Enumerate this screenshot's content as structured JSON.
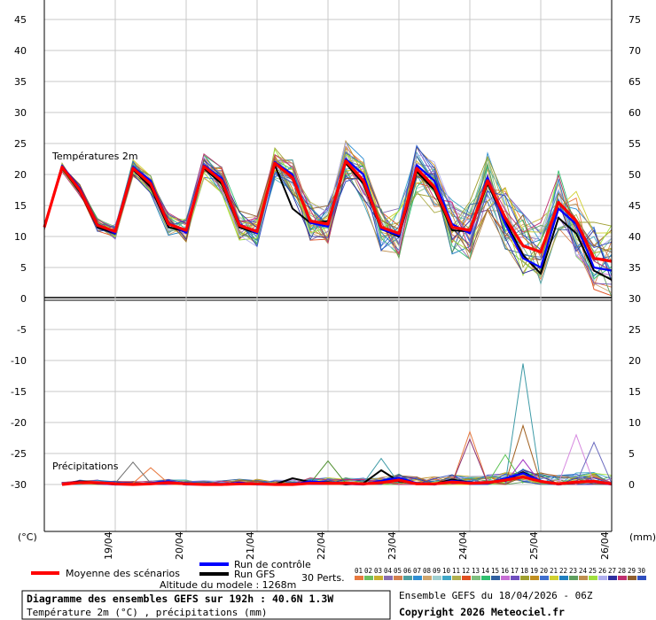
{
  "chart_data": {
    "type": "line",
    "temp_axis": {
      "unit": "(°C)",
      "ylim": [
        -35,
        45
      ],
      "ticks": [
        45,
        40,
        35,
        30,
        25,
        20,
        15,
        10,
        5,
        0,
        -5,
        -10,
        -15,
        -20,
        -25,
        -30
      ]
    },
    "precip_axis": {
      "unit": "(mm)",
      "ticks": [
        75,
        70,
        65,
        60,
        55,
        50,
        45,
        40,
        35,
        30,
        25,
        20,
        15,
        10,
        5,
        0
      ]
    },
    "x_range_hours": [
      0,
      192
    ],
    "x_ticks": [
      {
        "label": "19/04",
        "hour": 24
      },
      {
        "label": "20/04",
        "hour": 48
      },
      {
        "label": "21/04",
        "hour": 72
      },
      {
        "label": "22/04",
        "hour": 96
      },
      {
        "label": "23/04",
        "hour": 120
      },
      {
        "label": "24/04",
        "hour": 144
      },
      {
        "label": "25/04",
        "hour": 168
      },
      {
        "label": "26/04",
        "hour": 192
      }
    ],
    "temp_title": "Températures 2m",
    "precip_title": "Précipitations",
    "temp_mean": {
      "name": "Moyenne des scénarios",
      "x": [
        0,
        6,
        12,
        18,
        24,
        30,
        36,
        42,
        48,
        54,
        60,
        66,
        72,
        78,
        84,
        90,
        96,
        102,
        108,
        114,
        120,
        126,
        132,
        138,
        144,
        150,
        156,
        162,
        168,
        174,
        180,
        186,
        192
      ],
      "y": [
        11.5,
        21.2,
        17.5,
        11.8,
        10.8,
        21.0,
        18.5,
        12.0,
        11.0,
        21.3,
        19.0,
        11.8,
        10.8,
        21.8,
        19.5,
        12.5,
        12.0,
        22.2,
        19.0,
        11.5,
        10.5,
        21.0,
        18.0,
        11.5,
        11.0,
        19.0,
        13.0,
        8.5,
        7.5,
        15.5,
        12.5,
        6.5,
        6.0
      ]
    },
    "temp_control": {
      "name": "Run de contrôle",
      "x": [
        0,
        6,
        12,
        18,
        24,
        30,
        36,
        42,
        48,
        54,
        60,
        66,
        72,
        78,
        84,
        90,
        96,
        102,
        108,
        114,
        120,
        126,
        132,
        138,
        144,
        150,
        156,
        162,
        168,
        174,
        180,
        186,
        192
      ],
      "y": [
        11.5,
        21.4,
        17.8,
        12.0,
        10.5,
        21.2,
        19.0,
        12.2,
        10.6,
        21.5,
        19.4,
        12.0,
        10.5,
        22.0,
        20.0,
        12.2,
        11.6,
        22.5,
        20.0,
        11.2,
        10.2,
        21.5,
        19.0,
        12.0,
        10.5,
        19.5,
        12.0,
        6.5,
        5.0,
        14.5,
        12.0,
        5.0,
        4.5
      ]
    },
    "temp_gfs": {
      "name": "Run GFS",
      "x": [
        0,
        6,
        12,
        18,
        24,
        30,
        36,
        42,
        48,
        54,
        60,
        66,
        72,
        78,
        84,
        90,
        96,
        102,
        108,
        114,
        120,
        126,
        132,
        138,
        144,
        150,
        156,
        162,
        168,
        174,
        180,
        186,
        192
      ],
      "y": [
        11.5,
        21.0,
        17.2,
        11.5,
        10.5,
        20.8,
        18.0,
        11.5,
        10.8,
        21.0,
        18.5,
        11.5,
        10.5,
        21.5,
        14.5,
        12.2,
        12.5,
        21.8,
        18.5,
        11.2,
        10.0,
        20.5,
        17.5,
        11.0,
        10.8,
        18.5,
        12.5,
        7.0,
        4.0,
        13.0,
        10.5,
        4.5,
        3.0
      ]
    },
    "precip_mean": {
      "x": [
        6,
        12,
        18,
        24,
        30,
        36,
        42,
        48,
        54,
        60,
        66,
        72,
        78,
        84,
        90,
        96,
        102,
        108,
        114,
        120,
        126,
        132,
        138,
        144,
        150,
        156,
        162,
        168,
        174,
        180,
        186,
        192
      ],
      "y": [
        0,
        0.3,
        0.3,
        0.1,
        0,
        0.1,
        0.3,
        0.1,
        0,
        0,
        0.1,
        0.1,
        0,
        0,
        0.2,
        0.2,
        0.2,
        0.1,
        0.3,
        0.7,
        0.1,
        0.1,
        0.4,
        0.2,
        0.3,
        0.7,
        1.2,
        0.5,
        0.1,
        0.4,
        0.5,
        0.1
      ]
    },
    "precip_control": {
      "x": [
        6,
        12,
        18,
        24,
        30,
        36,
        42,
        48,
        54,
        60,
        66,
        72,
        78,
        84,
        90,
        96,
        102,
        108,
        114,
        120,
        126,
        132,
        138,
        144,
        150,
        156,
        162,
        168,
        174,
        180,
        186,
        192
      ],
      "y": [
        0,
        0.4,
        0.2,
        0,
        0,
        0.2,
        0.5,
        0,
        0,
        0,
        0.3,
        0,
        0,
        0,
        0.5,
        0.3,
        0.1,
        0,
        0.6,
        1.1,
        0.2,
        0,
        0.6,
        0.3,
        0.2,
        1.0,
        1.8,
        0.6,
        0,
        0.5,
        0.4,
        0
      ]
    },
    "precip_gfs": {
      "x": [
        6,
        12,
        18,
        24,
        30,
        36,
        42,
        48,
        54,
        60,
        66,
        72,
        78,
        84,
        90,
        96,
        102,
        108,
        114,
        120,
        126,
        132,
        138,
        144,
        150,
        156,
        162,
        168,
        174,
        180,
        186,
        192
      ],
      "y": [
        0,
        0.5,
        0.3,
        0,
        0,
        0.2,
        0.3,
        0,
        0,
        0,
        0.2,
        0,
        0,
        1.0,
        0.4,
        0.4,
        0,
        0.2,
        2.3,
        0.5,
        0.2,
        0.1,
        0.8,
        0.3,
        0.3,
        0.6,
        2.0,
        0.5,
        0,
        0.3,
        0.6,
        0
      ]
    },
    "precip_spikes": [
      {
        "x": 162,
        "y": 19.5,
        "color": "#3f9ba7"
      },
      {
        "x": 144,
        "y": 8.5,
        "color": "#e8793f"
      },
      {
        "x": 144,
        "y": 7.3,
        "color": "#8a2d6f"
      },
      {
        "x": 162,
        "y": 9.5,
        "color": "#a05f1e"
      },
      {
        "x": 180,
        "y": 8.0,
        "color": "#d689e0"
      },
      {
        "x": 186,
        "y": 6.8,
        "color": "#6b6bbf"
      },
      {
        "x": 36,
        "y": 2.7,
        "color": "#e8793f"
      },
      {
        "x": 30,
        "y": 3.6,
        "color": "#6f6f6f"
      },
      {
        "x": 96,
        "y": 3.8,
        "color": "#4f8f2f"
      },
      {
        "x": 114,
        "y": 4.2,
        "color": "#3f9ba7"
      },
      {
        "x": 156,
        "y": 4.8,
        "color": "#58c24f"
      },
      {
        "x": 162,
        "y": 4.0,
        "color": "#9f2fbf"
      }
    ],
    "colors": {
      "mean": "#ff0000",
      "control": "#0000ff",
      "gfs": "#000000",
      "zero_line": "#000000",
      "grid": "#c8c8c8"
    },
    "perturbation_palette": [
      "#e8793f",
      "#6fbf5f",
      "#c8b02f",
      "#8a6fb0",
      "#d4804f",
      "#4f9f9f",
      "#2f8fd4",
      "#cfa66f",
      "#9fcfcf",
      "#3fa7c7",
      "#b0b050",
      "#e05020",
      "#7fbf7f",
      "#2fbf6f",
      "#2f5f9f",
      "#c76fd4",
      "#6f4fbf",
      "#9f9f2f",
      "#c08f20",
      "#3f6fcf",
      "#d0d030",
      "#1f7fbf",
      "#5f9f5f",
      "#bf8f4f",
      "#9fdf3f",
      "#afafef",
      "#2f2f9f",
      "#bf2f6f",
      "#8f5f2f",
      "#2f4fbf"
    ]
  },
  "legend": {
    "mean_label": "Moyenne des scénarios",
    "control_label": "Run de contrôle",
    "gfs_label": "Run GFS",
    "perts_label": "30 Perts.",
    "pert_numbers": [
      "01",
      "02",
      "03",
      "04",
      "05",
      "06",
      "07",
      "08",
      "09",
      "10",
      "11",
      "12",
      "13",
      "14",
      "15",
      "16",
      "17",
      "18",
      "19",
      "20",
      "21",
      "22",
      "23",
      "24",
      "25",
      "26",
      "27",
      "28",
      "29",
      "30"
    ]
  },
  "footer": {
    "altitude": "Altitude du modele : 1268m",
    "run_info": "Ensemble GEFS du 18/04/2026 - 06Z",
    "title": "Diagramme des ensembles GEFS sur 192h : 40.6N 1.3W",
    "subtitle": "Température 2m (°C) , précipitations (mm)",
    "copyright": "Copyright 2026 Meteociel.fr"
  }
}
